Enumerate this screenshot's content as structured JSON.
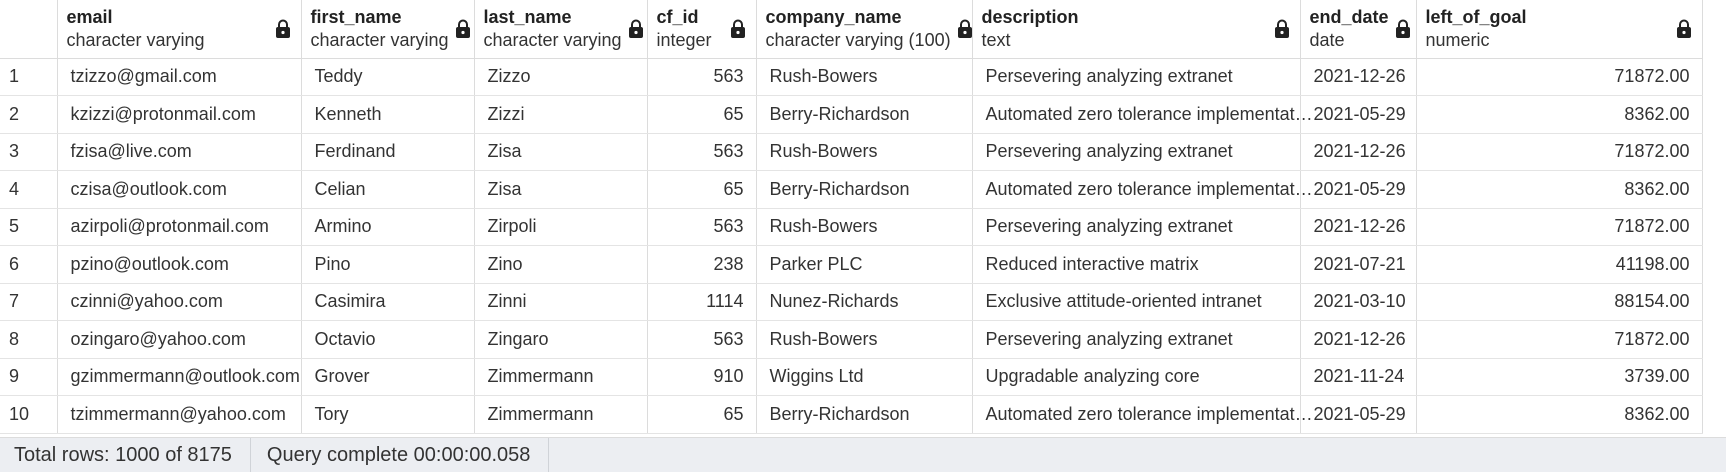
{
  "columns": [
    {
      "name": "email",
      "type": "character varying"
    },
    {
      "name": "first_name",
      "type": "character varying"
    },
    {
      "name": "last_name",
      "type": "character varying"
    },
    {
      "name": "cf_id",
      "type": "integer"
    },
    {
      "name": "company_name",
      "type": "character varying (100)"
    },
    {
      "name": "description",
      "type": "text"
    },
    {
      "name": "end_date",
      "type": "date"
    },
    {
      "name": "left_of_goal",
      "type": "numeric"
    }
  ],
  "rows": [
    [
      "1",
      "tzizzo@gmail.com",
      "Teddy",
      "Zizzo",
      "563",
      "Rush-Bowers",
      "Persevering analyzing extranet",
      "2021-12-26",
      "71872.00"
    ],
    [
      "2",
      "kzizzi@protonmail.com",
      "Kenneth",
      "Zizzi",
      "65",
      "Berry-Richardson",
      "Automated zero tolerance implementat…",
      "2021-05-29",
      "8362.00"
    ],
    [
      "3",
      "fzisa@live.com",
      "Ferdinand",
      "Zisa",
      "563",
      "Rush-Bowers",
      "Persevering analyzing extranet",
      "2021-12-26",
      "71872.00"
    ],
    [
      "4",
      "czisa@outlook.com",
      "Celian",
      "Zisa",
      "65",
      "Berry-Richardson",
      "Automated zero tolerance implementat…",
      "2021-05-29",
      "8362.00"
    ],
    [
      "5",
      "azirpoli@protonmail.com",
      "Armino",
      "Zirpoli",
      "563",
      "Rush-Bowers",
      "Persevering analyzing extranet",
      "2021-12-26",
      "71872.00"
    ],
    [
      "6",
      "pzino@outlook.com",
      "Pino",
      "Zino",
      "238",
      "Parker PLC",
      "Reduced interactive matrix",
      "2021-07-21",
      "41198.00"
    ],
    [
      "7",
      "czinni@yahoo.com",
      "Casimira",
      "Zinni",
      "1114",
      "Nunez-Richards",
      "Exclusive attitude-oriented intranet",
      "2021-03-10",
      "88154.00"
    ],
    [
      "8",
      "ozingaro@yahoo.com",
      "Octavio",
      "Zingaro",
      "563",
      "Rush-Bowers",
      "Persevering analyzing extranet",
      "2021-12-26",
      "71872.00"
    ],
    [
      "9",
      "gzimmermann@outlook.com",
      "Grover",
      "Zimmermann",
      "910",
      "Wiggins Ltd",
      "Upgradable analyzing core",
      "2021-11-24",
      "3739.00"
    ],
    [
      "10",
      "tzimmermann@yahoo.com",
      "Tory",
      "Zimmermann",
      "65",
      "Berry-Richardson",
      "Automated zero tolerance implementat…",
      "2021-05-29",
      "8362.00"
    ]
  ],
  "status": {
    "total_rows": "Total rows: 1000 of 8175",
    "query": "Query complete 00:00:00.058"
  },
  "icons": {
    "lock": "lock-icon"
  }
}
